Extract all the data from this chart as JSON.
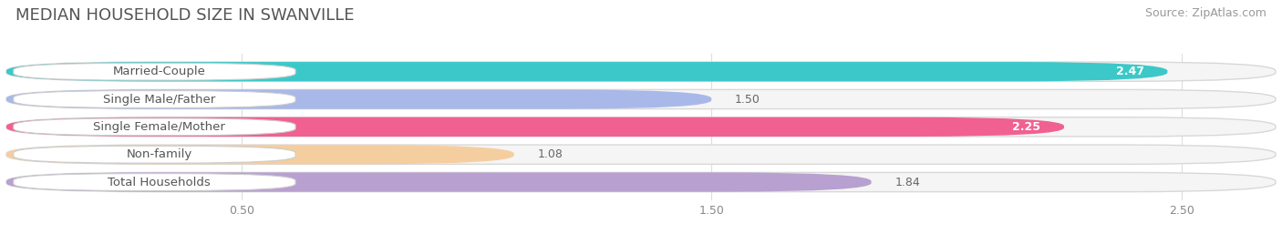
{
  "title": "MEDIAN HOUSEHOLD SIZE IN SWANVILLE",
  "source": "Source: ZipAtlas.com",
  "categories": [
    "Married-Couple",
    "Single Male/Father",
    "Single Female/Mother",
    "Non-family",
    "Total Households"
  ],
  "values": [
    2.47,
    1.5,
    2.25,
    1.08,
    1.84
  ],
  "bar_colors": [
    "#3cc8c8",
    "#a8b8e8",
    "#f06090",
    "#f5cea0",
    "#b8a0d0"
  ],
  "xlim_max": 2.7,
  "xticks": [
    0.5,
    1.5,
    2.5
  ],
  "background_color": "#ffffff",
  "bar_bg_color": "#f0f0f0",
  "title_fontsize": 13,
  "source_fontsize": 9,
  "label_fontsize": 9.5,
  "value_fontsize": 9
}
